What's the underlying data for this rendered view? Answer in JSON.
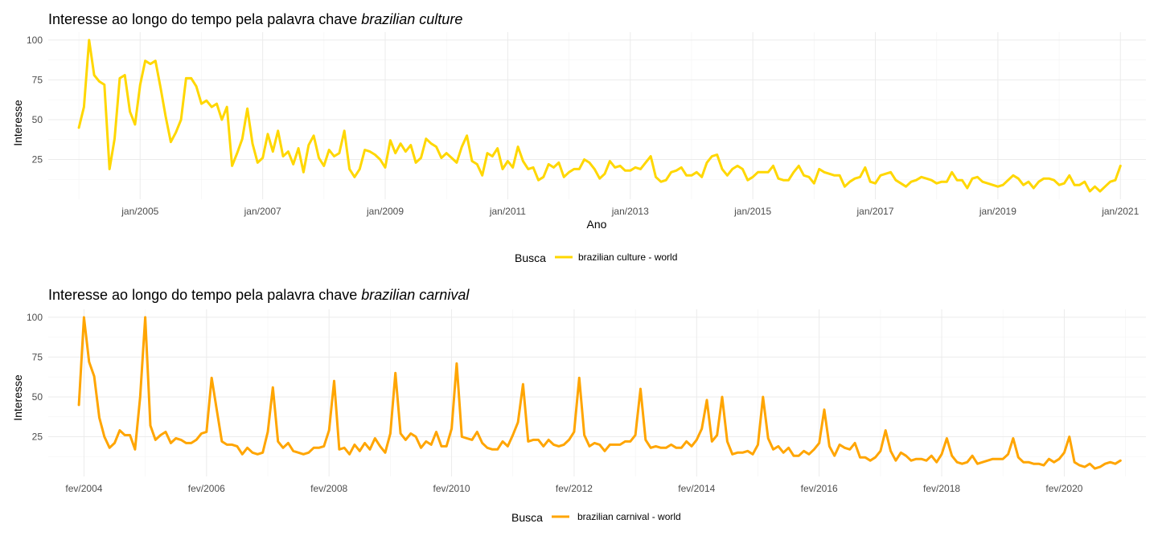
{
  "chart_data": [
    {
      "type": "line",
      "title_prefix": "Interesse ao longo do tempo pela palavra chave ",
      "title_emph": "brazilian culture",
      "xlabel": "Ano",
      "ylabel": "Interesse",
      "x_ticks": [
        "jan/2005",
        "jan/2007",
        "jan/2009",
        "jan/2011",
        "jan/2013",
        "jan/2015",
        "jan/2017",
        "jan/2019",
        "jan/2021"
      ],
      "xlim": [
        "2003-07",
        "2021-06"
      ],
      "ylim": [
        0,
        105
      ],
      "y_ticks": [
        25,
        50,
        75,
        100
      ],
      "grid": true,
      "legend_position": "bottom",
      "legend_title": "Busca",
      "color": "#FFD700",
      "series": [
        {
          "name": "brazilian culture - world",
          "start": "2004-01",
          "values": [
            45,
            58,
            100,
            78,
            74,
            72,
            19,
            38,
            76,
            78,
            55,
            47,
            72,
            87,
            85,
            87,
            70,
            52,
            36,
            42,
            50,
            76,
            76,
            71,
            60,
            62,
            58,
            60,
            50,
            58,
            21,
            29,
            38,
            57,
            35,
            23,
            26,
            41,
            30,
            43,
            27,
            30,
            22,
            32,
            17,
            34,
            40,
            26,
            21,
            31,
            27,
            29,
            43,
            19,
            14,
            19,
            31,
            30,
            28,
            25,
            20,
            37,
            29,
            35,
            30,
            34,
            23,
            26,
            38,
            35,
            33,
            26,
            29,
            26,
            23,
            33,
            40,
            24,
            22,
            15,
            29,
            27,
            32,
            19,
            24,
            20,
            33,
            24,
            19,
            20,
            12,
            14,
            22,
            20,
            23,
            14,
            17,
            19,
            19,
            25,
            23,
            19,
            13,
            16,
            24,
            20,
            21,
            18,
            18,
            20,
            19,
            23,
            27,
            14,
            11,
            12,
            17,
            18,
            20,
            15,
            15,
            17,
            14,
            23,
            27,
            28,
            19,
            15,
            19,
            21,
            19,
            12,
            14,
            17,
            17,
            17,
            21,
            13,
            12,
            12,
            17,
            21,
            15,
            14,
            10,
            19,
            17,
            16,
            15,
            15,
            8,
            11,
            13,
            14,
            20,
            11,
            10,
            15,
            16,
            17,
            12,
            10,
            8,
            11,
            12,
            14,
            13,
            12,
            10,
            11,
            11,
            17,
            12,
            12,
            7,
            13,
            14,
            11,
            10,
            9,
            8,
            9,
            12,
            15,
            13,
            9,
            11,
            7,
            11,
            13,
            13,
            12,
            9,
            10,
            15,
            9,
            9,
            11,
            5,
            8,
            5,
            8,
            11,
            12,
            21
          ]
        }
      ]
    },
    {
      "type": "line",
      "title_prefix": "Interesse ao longo do tempo pela palavra chave ",
      "title_emph": "brazilian carnival",
      "xlabel": "",
      "ylabel": "Interesse",
      "x_ticks": [
        "fev/2004",
        "fev/2006",
        "fev/2008",
        "fev/2010",
        "fev/2012",
        "fev/2014",
        "fev/2016",
        "fev/2018",
        "fev/2020"
      ],
      "xlim": [
        "2003-07",
        "2021-06"
      ],
      "ylim": [
        0,
        105
      ],
      "y_ticks": [
        25,
        50,
        75,
        100
      ],
      "grid": true,
      "legend_position": "bottom",
      "legend_title": "Busca",
      "color": "#FFA500",
      "series": [
        {
          "name": "brazilian carnival - world",
          "start": "2004-01",
          "values": [
            45,
            100,
            72,
            63,
            37,
            25,
            18,
            21,
            29,
            26,
            26,
            17,
            50,
            100,
            32,
            23,
            26,
            28,
            21,
            24,
            23,
            21,
            21,
            23,
            27,
            28,
            62,
            42,
            22,
            20,
            20,
            19,
            14,
            18,
            15,
            14,
            15,
            28,
            56,
            22,
            18,
            21,
            16,
            15,
            14,
            15,
            18,
            18,
            19,
            29,
            60,
            17,
            18,
            14,
            20,
            16,
            21,
            17,
            24,
            19,
            15,
            27,
            65,
            27,
            23,
            27,
            25,
            18,
            22,
            20,
            28,
            19,
            19,
            30,
            71,
            25,
            24,
            23,
            28,
            21,
            18,
            17,
            17,
            22,
            19,
            26,
            34,
            58,
            22,
            23,
            23,
            19,
            23,
            20,
            19,
            20,
            23,
            28,
            62,
            26,
            19,
            21,
            20,
            16,
            20,
            20,
            20,
            22,
            22,
            26,
            55,
            23,
            18,
            19,
            18,
            18,
            20,
            18,
            18,
            22,
            19,
            23,
            30,
            48,
            22,
            26,
            50,
            22,
            14,
            15,
            15,
            16,
            14,
            20,
            50,
            24,
            17,
            19,
            15,
            18,
            13,
            13,
            16,
            14,
            17,
            21,
            42,
            19,
            13,
            20,
            18,
            17,
            21,
            12,
            12,
            10,
            12,
            16,
            29,
            16,
            10,
            15,
            13,
            10,
            11,
            11,
            10,
            13,
            9,
            14,
            24,
            13,
            9,
            8,
            9,
            13,
            8,
            9,
            10,
            11,
            11,
            11,
            14,
            24,
            12,
            9,
            9,
            8,
            8,
            7,
            11,
            9,
            11,
            15,
            25,
            9,
            7,
            6,
            8,
            5,
            6,
            8,
            9,
            8,
            10
          ]
        }
      ]
    }
  ]
}
